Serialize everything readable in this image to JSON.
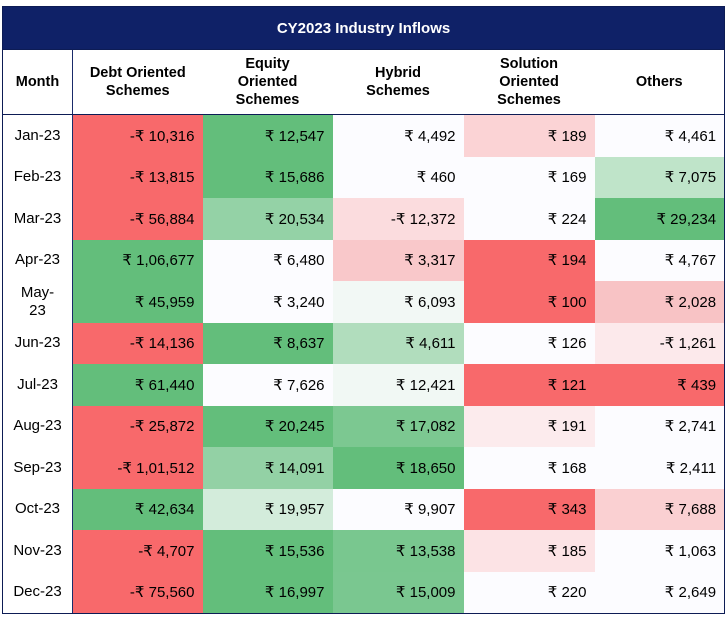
{
  "title": "CY2023 Industry Inflows",
  "headers": {
    "month": "Month",
    "debt": [
      "Debt Oriented",
      "Schemes"
    ],
    "equity": [
      "Equity",
      "Oriented",
      "Schemes"
    ],
    "hybrid": [
      "Hybrid",
      "Schemes"
    ],
    "solution": [
      "Solution",
      "Oriented",
      "Schemes"
    ],
    "others": "Others"
  },
  "heat_colors": {
    "strong_green": "#63be7b",
    "light_green": "#c8e8d1",
    "white": "#fcfcff",
    "light_red": "#f9c9cb",
    "strong_red": "#f8696b"
  },
  "rows": [
    {
      "month": [
        "Jan-23"
      ],
      "debt": "-₹ 10,316",
      "equity": "₹ 12,547",
      "hybrid": "₹ 4,492",
      "solution": "₹ 189",
      "others": "₹ 4,461"
    },
    {
      "month": [
        "Feb-23"
      ],
      "debt": "-₹ 13,815",
      "equity": "₹ 15,686",
      "hybrid": "₹ 460",
      "solution": "₹ 169",
      "others": "₹ 7,075"
    },
    {
      "month": [
        "Mar-23"
      ],
      "debt": "-₹ 56,884",
      "equity": "₹ 20,534",
      "hybrid": "-₹ 12,372",
      "solution": "₹ 224",
      "others": "₹ 29,234"
    },
    {
      "month": [
        "Apr-23"
      ],
      "debt": "₹ 1,06,677",
      "equity": "₹ 6,480",
      "hybrid": "₹ 3,317",
      "solution": "₹ 194",
      "others": "₹ 4,767"
    },
    {
      "month": [
        "May-",
        "23"
      ],
      "debt": "₹ 45,959",
      "equity": "₹ 3,240",
      "hybrid": "₹ 6,093",
      "solution": "₹ 100",
      "others": "₹ 2,028"
    },
    {
      "month": [
        "Jun-23"
      ],
      "debt": "-₹ 14,136",
      "equity": "₹ 8,637",
      "hybrid": "₹ 4,611",
      "solution": "₹ 126",
      "others": "-₹ 1,261"
    },
    {
      "month": [
        "Jul-23"
      ],
      "debt": "₹ 61,440",
      "equity": "₹ 7,626",
      "hybrid": "₹ 12,421",
      "solution": "₹ 121",
      "others": "₹ 439"
    },
    {
      "month": [
        "Aug-23"
      ],
      "debt": "-₹ 25,872",
      "equity": "₹ 20,245",
      "hybrid": "₹ 17,082",
      "solution": "₹ 191",
      "others": "₹ 2,741"
    },
    {
      "month": [
        "Sep-23"
      ],
      "debt": "-₹ 1,01,512",
      "equity": "₹ 14,091",
      "hybrid": "₹ 18,650",
      "solution": "₹ 168",
      "others": "₹ 2,411"
    },
    {
      "month": [
        "Oct-23"
      ],
      "debt": "₹ 42,634",
      "equity": "₹ 19,957",
      "hybrid": "₹ 9,907",
      "solution": "₹ 343",
      "others": "₹ 7,688"
    },
    {
      "month": [
        "Nov-23"
      ],
      "debt": "-₹ 4,707",
      "equity": "₹ 15,536",
      "hybrid": "₹ 13,538",
      "solution": "₹ 185",
      "others": "₹ 1,063"
    },
    {
      "month": [
        "Dec-23"
      ],
      "debt": "-₹ 75,560",
      "equity": "₹ 16,997",
      "hybrid": "₹ 15,009",
      "solution": "₹ 220",
      "others": "₹ 2,649"
    }
  ]
}
